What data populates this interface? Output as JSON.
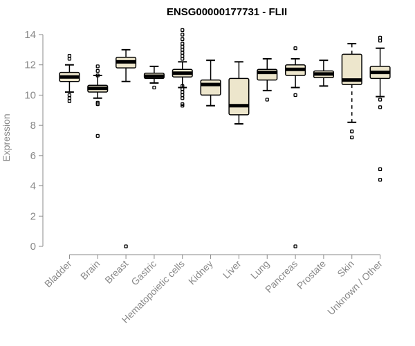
{
  "chart_data": {
    "type": "boxplot",
    "title": "ENSG00000177731 - FLII",
    "xlabel": "",
    "ylabel": "Expression",
    "ylim": [
      0,
      14
    ],
    "yticks": [
      0,
      2,
      4,
      6,
      8,
      10,
      12,
      14
    ],
    "grid": false,
    "legend": "none",
    "colors": {
      "box_fill": "#ede6cc",
      "stroke": "#000000",
      "axis": "#888888",
      "title": "#000000"
    },
    "categories": [
      "Bladder",
      "Brain",
      "Breast",
      "Gastric",
      "Hematopoietic cells",
      "Kidney",
      "Liver",
      "Lung",
      "Pancreas",
      "Prostate",
      "Skin",
      "Unknown / Other"
    ],
    "boxes": [
      {
        "category": "Bladder",
        "whisker_low": 10.2,
        "q1": 10.9,
        "median": 11.2,
        "q3": 11.5,
        "whisker_high": 12.0,
        "outliers": [
          12.6,
          12.4,
          10.0,
          9.8,
          9.6
        ]
      },
      {
        "category": "Brain",
        "whisker_low": 9.8,
        "q1": 10.2,
        "median": 10.45,
        "q3": 10.65,
        "whisker_high": 11.3,
        "outliers": [
          11.9,
          11.6,
          11.3,
          9.5,
          9.4,
          7.3
        ]
      },
      {
        "category": "Breast",
        "whisker_low": 10.9,
        "q1": 11.8,
        "median": 12.2,
        "q3": 12.5,
        "whisker_high": 13.0,
        "outliers": [
          0.0
        ]
      },
      {
        "category": "Gastric",
        "whisker_low": 10.8,
        "q1": 11.1,
        "median": 11.25,
        "q3": 11.45,
        "whisker_high": 11.9,
        "outliers": [
          10.5
        ]
      },
      {
        "category": "Hematopoietic cells",
        "whisker_low": 10.5,
        "q1": 11.2,
        "median": 11.45,
        "q3": 11.7,
        "whisker_high": 12.2,
        "outliers": [
          14.3,
          14.0,
          13.7,
          13.4,
          13.2,
          13.0,
          12.8,
          12.6,
          12.4,
          10.6,
          10.4,
          10.2,
          10.0,
          9.8,
          9.4,
          9.3
        ]
      },
      {
        "category": "Kidney",
        "whisker_low": 9.3,
        "q1": 10.0,
        "median": 10.7,
        "q3": 11.0,
        "whisker_high": 12.3,
        "outliers": []
      },
      {
        "category": "Liver",
        "whisker_low": 8.1,
        "q1": 8.7,
        "median": 9.3,
        "q3": 11.1,
        "whisker_high": 12.2,
        "outliers": []
      },
      {
        "category": "Lung",
        "whisker_low": 10.3,
        "q1": 11.0,
        "median": 11.5,
        "q3": 11.7,
        "whisker_high": 12.4,
        "outliers": [
          9.7
        ]
      },
      {
        "category": "Pancreas",
        "whisker_low": 10.5,
        "q1": 11.3,
        "median": 11.7,
        "q3": 12.0,
        "whisker_high": 12.4,
        "outliers": [
          13.1,
          10.0,
          0.0
        ]
      },
      {
        "category": "Prostate",
        "whisker_low": 10.6,
        "q1": 11.15,
        "median": 11.4,
        "q3": 11.6,
        "whisker_high": 12.3,
        "outliers": []
      },
      {
        "category": "Skin",
        "whisker_low": 8.2,
        "q1": 10.7,
        "median": 11.0,
        "q3": 12.7,
        "whisker_high": 13.4,
        "outliers": [
          7.6,
          7.2
        ]
      },
      {
        "category": "Unknown / Other",
        "whisker_low": 9.9,
        "q1": 11.1,
        "median": 11.5,
        "q3": 11.9,
        "whisker_high": 13.1,
        "outliers": [
          13.8,
          13.6,
          9.7,
          9.2,
          5.1,
          4.4
        ]
      }
    ]
  }
}
